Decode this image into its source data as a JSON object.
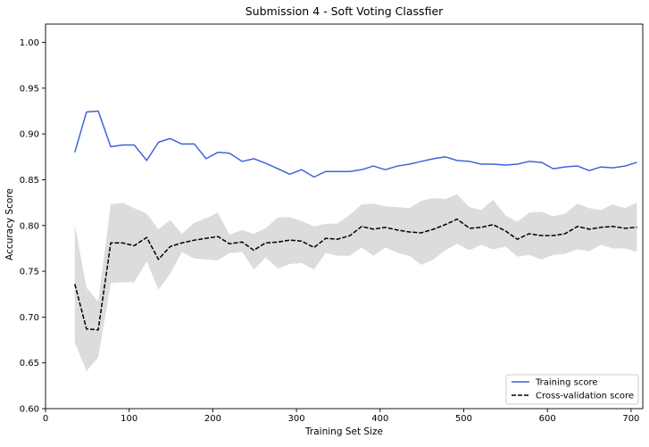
{
  "chart_data": {
    "type": "line",
    "title": "Submission 4 - Soft Voting Classfier",
    "xlabel": "Training Set Size",
    "ylabel": "Accuracy Score",
    "xlim": [
      0,
      714
    ],
    "ylim": [
      0.6,
      1.02
    ],
    "x_ticks": [
      0,
      100,
      200,
      300,
      400,
      500,
      600,
      700
    ],
    "y_ticks": [
      0.6,
      0.65,
      0.7,
      0.75,
      0.8,
      0.85,
      0.9,
      0.95,
      1.0
    ],
    "x_tick_labels": [
      "0",
      "100",
      "200",
      "300",
      "400",
      "500",
      "600",
      "700"
    ],
    "y_tick_labels": [
      "0.60",
      "0.65",
      "0.70",
      "0.75",
      "0.80",
      "0.85",
      "0.90",
      "0.95",
      "1.00"
    ],
    "grid": false,
    "legend_position": "bottom-right",
    "x": [
      35,
      49,
      63,
      78,
      92,
      106,
      121,
      135,
      149,
      163,
      178,
      192,
      206,
      220,
      235,
      249,
      263,
      278,
      292,
      306,
      321,
      335,
      349,
      364,
      378,
      392,
      406,
      421,
      435,
      449,
      464,
      478,
      492,
      507,
      521,
      535,
      550,
      564,
      578,
      593,
      607,
      621,
      636,
      650,
      664,
      678,
      693,
      707
    ],
    "series": [
      {
        "name": "Training score",
        "color": "#3f64d6",
        "style": "solid",
        "values": [
          0.88,
          0.924,
          0.925,
          0.886,
          0.888,
          0.888,
          0.871,
          0.891,
          0.895,
          0.889,
          0.889,
          0.873,
          0.88,
          0.879,
          0.87,
          0.873,
          0.868,
          0.862,
          0.856,
          0.861,
          0.853,
          0.859,
          0.859,
          0.859,
          0.861,
          0.865,
          0.861,
          0.865,
          0.867,
          0.87,
          0.873,
          0.875,
          0.871,
          0.87,
          0.867,
          0.867,
          0.866,
          0.867,
          0.87,
          0.869,
          0.862,
          0.864,
          0.865,
          0.86,
          0.864,
          0.863,
          0.865,
          0.869
        ]
      },
      {
        "name": "Cross-validation score",
        "color": "#000000",
        "style": "dashed",
        "values": [
          0.736,
          0.687,
          0.686,
          0.781,
          0.781,
          0.778,
          0.787,
          0.763,
          0.777,
          0.781,
          0.784,
          0.786,
          0.788,
          0.78,
          0.782,
          0.773,
          0.781,
          0.782,
          0.784,
          0.783,
          0.776,
          0.786,
          0.785,
          0.789,
          0.799,
          0.796,
          0.798,
          0.795,
          0.793,
          0.792,
          0.796,
          0.801,
          0.807,
          0.797,
          0.798,
          0.801,
          0.794,
          0.785,
          0.791,
          0.789,
          0.789,
          0.791,
          0.799,
          0.796,
          0.798,
          0.799,
          0.797,
          0.798
        ]
      }
    ],
    "cv_band": {
      "color": "#dcdcdc",
      "upper": [
        0.801,
        0.732,
        0.717,
        0.823,
        0.825,
        0.819,
        0.813,
        0.796,
        0.806,
        0.791,
        0.803,
        0.808,
        0.814,
        0.79,
        0.795,
        0.791,
        0.797,
        0.809,
        0.809,
        0.805,
        0.799,
        0.802,
        0.802,
        0.812,
        0.823,
        0.824,
        0.821,
        0.82,
        0.819,
        0.827,
        0.83,
        0.829,
        0.834,
        0.82,
        0.817,
        0.828,
        0.811,
        0.804,
        0.814,
        0.815,
        0.81,
        0.813,
        0.824,
        0.819,
        0.817,
        0.823,
        0.819,
        0.825
      ],
      "lower": [
        0.672,
        0.641,
        0.656,
        0.737,
        0.738,
        0.738,
        0.761,
        0.73,
        0.747,
        0.771,
        0.764,
        0.763,
        0.762,
        0.77,
        0.771,
        0.752,
        0.765,
        0.753,
        0.758,
        0.759,
        0.752,
        0.77,
        0.767,
        0.767,
        0.776,
        0.767,
        0.776,
        0.77,
        0.767,
        0.757,
        0.763,
        0.773,
        0.78,
        0.773,
        0.779,
        0.774,
        0.777,
        0.766,
        0.768,
        0.763,
        0.768,
        0.769,
        0.774,
        0.772,
        0.779,
        0.775,
        0.775,
        0.771
      ]
    }
  }
}
